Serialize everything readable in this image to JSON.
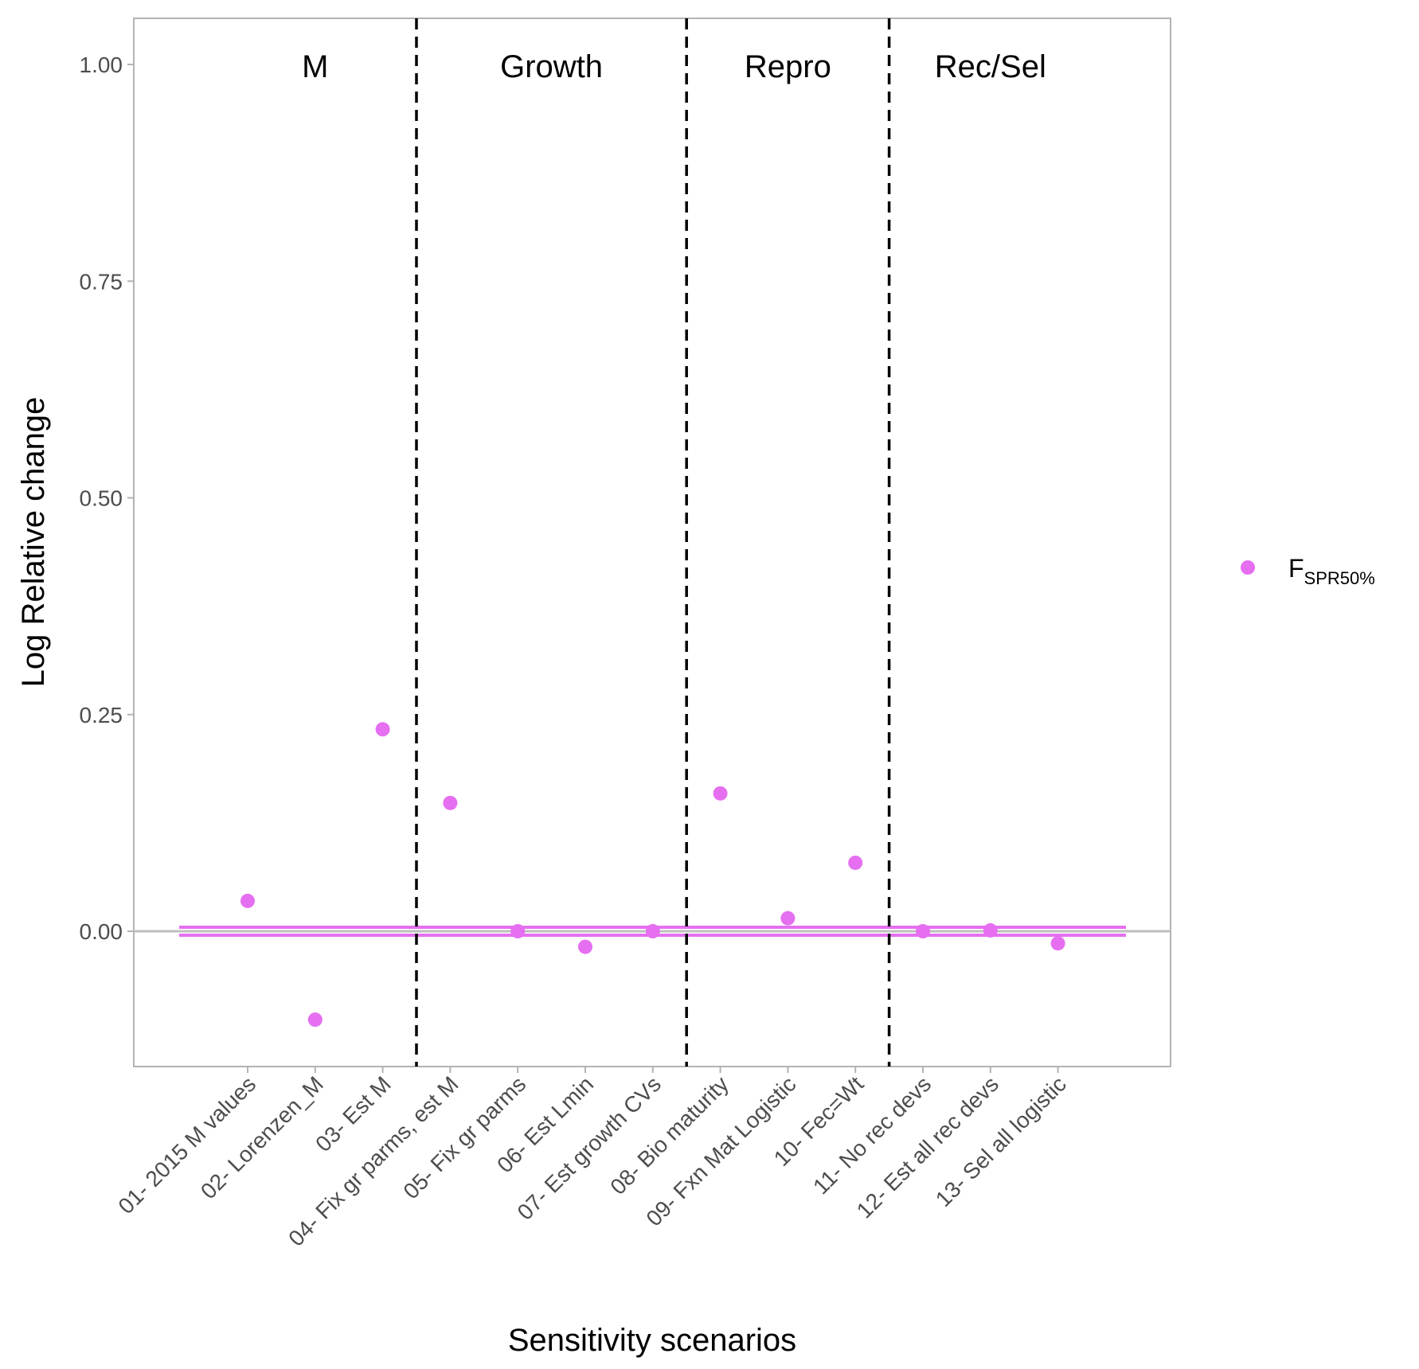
{
  "chart_data": {
    "type": "scatter",
    "xlabel": "Sensitivity scenarios",
    "ylabel": "Log Relative change",
    "ylim": [
      -0.155,
      1.055
    ],
    "yticks": [
      "0.00",
      "0.25",
      "0.50",
      "0.75",
      "1.00"
    ],
    "ytick_values": [
      0,
      0.25,
      0.5,
      0.75,
      1.0
    ],
    "categories": [
      "01- 2015 M values",
      "02- Lorenzen_M",
      "03- Est M",
      "04- Fix gr parms, est M",
      "05- Fix gr parms",
      "06- Est Lmin",
      "07- Est growth CVs",
      "08- Bio maturity",
      "09- Fxn Mat Logistic",
      "10- Fec=Wt",
      "11- No rec devs",
      "12- Est all rec devs",
      "13- Sel all logistic"
    ],
    "series": [
      {
        "name_main": "F",
        "name_sub": "SPR50%",
        "color": "#e56ff0",
        "values": [
          0.035,
          -0.102,
          0.233,
          0.148,
          0.0,
          -0.018,
          0.0,
          0.159,
          0.015,
          0.079,
          0.0,
          0.001,
          -0.014
        ]
      }
    ],
    "groups": [
      {
        "label": "M",
        "center": 2
      },
      {
        "label": "Growth",
        "center": 5.5
      },
      {
        "label": "Repro",
        "center": 9
      },
      {
        "label": "Rec/Sel",
        "center": 12
      }
    ],
    "dividers": [
      3.5,
      7.5,
      10.5
    ],
    "reference_line": 0,
    "band_line_color": "#e56ff0",
    "reference_color": "#bebebe",
    "grid": false,
    "legend_position": "right"
  }
}
